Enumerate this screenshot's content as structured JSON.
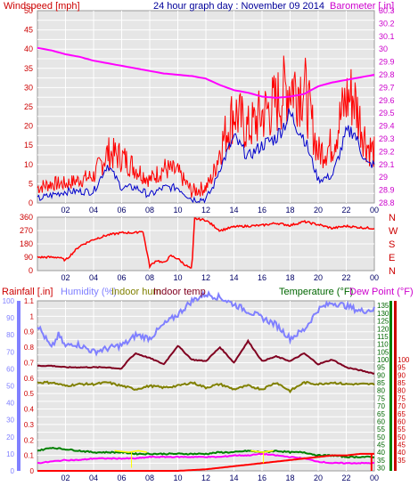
{
  "colors": {
    "bg": "#ffffff",
    "plot_bg": "#e6e6e6",
    "grid": "#ffffff",
    "axis_text": "#000066",
    "wind_avg": "#0000cc",
    "wind_gust": "#ff0000",
    "barometer": "#ff00ff",
    "direction": "#ff0000",
    "rain": "#ff0000",
    "humidity": "#8080ff",
    "indoor_hum": "#808000",
    "indoor_temp": "#800020",
    "temperature": "#008000",
    "dewpoint": "#ff00ff",
    "yellow": "#ffff00",
    "labels_red": "#cc0000",
    "labels_magenta": "#cc00cc",
    "labels_blue": "#000099",
    "labels_green": "#006600"
  },
  "chart_data": [
    {
      "type": "line",
      "title": "24 hour graph day : November 09 2014",
      "x_ticks": [
        "02",
        "04",
        "06",
        "08",
        "10",
        "12",
        "14",
        "16",
        "18",
        "20",
        "22",
        "00"
      ],
      "y_left_label": "Windspeed [mph]",
      "y_left_ticks": [
        "0",
        "5",
        "10",
        "15",
        "20",
        "25",
        "30",
        "35",
        "40",
        "45",
        "50"
      ],
      "ylim_left": [
        0,
        50
      ],
      "y_right_label": "Barometer [.in]",
      "y_right_ticks": [
        "28.8",
        "28.9",
        "29",
        "29.1",
        "29.2",
        "29.3",
        "29.4",
        "29.5",
        "29.6",
        "29.7",
        "29.8",
        "29.9",
        "30",
        "30.1",
        "30.2",
        "30.3"
      ],
      "ylim_right": [
        28.8,
        30.3
      ],
      "xlim_hours": [
        0,
        24
      ],
      "series": [
        {
          "key": "gust",
          "hours": [
            0,
            1,
            2,
            3,
            4,
            5,
            6,
            7,
            8,
            9,
            10,
            11,
            12,
            12.5,
            13,
            14,
            15,
            16,
            17,
            18,
            19,
            20,
            21,
            22,
            22.5,
            23,
            23.5,
            24
          ],
          "values": [
            4,
            5,
            5,
            6,
            7,
            13,
            12,
            9,
            6,
            9,
            8,
            3,
            4,
            7,
            14,
            24,
            19,
            23,
            26,
            31,
            30,
            13,
            15,
            27,
            28,
            21,
            15,
            13
          ]
        },
        {
          "key": "average",
          "hours": [
            0,
            1,
            2,
            3,
            4,
            5,
            6,
            7,
            8,
            9,
            10,
            11,
            12,
            12.5,
            13,
            14,
            15,
            16,
            17,
            18,
            19,
            20,
            21,
            22,
            22.5,
            23,
            23.5,
            24
          ],
          "values": [
            1,
            2,
            3,
            3,
            3,
            10,
            4,
            4,
            2,
            4,
            4,
            1,
            1,
            4,
            9,
            17,
            12,
            15,
            17,
            23,
            17,
            6,
            7,
            18,
            19,
            14,
            10,
            10
          ]
        },
        {
          "key": "barometer",
          "hours": [
            0,
            1,
            2,
            3,
            4,
            5,
            6,
            7,
            8,
            9,
            10,
            11,
            12,
            13,
            14,
            15,
            16,
            17,
            18,
            19,
            20,
            21,
            22,
            23,
            24
          ],
          "values": [
            30.01,
            29.99,
            29.96,
            29.94,
            29.91,
            29.89,
            29.87,
            29.85,
            29.83,
            29.81,
            29.8,
            29.79,
            29.77,
            29.72,
            29.68,
            29.66,
            29.63,
            29.62,
            29.63,
            29.65,
            29.71,
            29.74,
            29.76,
            29.78,
            29.8
          ]
        }
      ]
    },
    {
      "type": "line",
      "x_ticks": [
        "02",
        "04",
        "06",
        "08",
        "10",
        "12",
        "14",
        "16",
        "18",
        "20",
        "22",
        "00"
      ],
      "y_left_ticks": [
        "0",
        "90",
        "180",
        "270",
        "360"
      ],
      "ylim": [
        0,
        360
      ],
      "y_right_ticks": [
        "N",
        "W",
        "S",
        "E",
        "N"
      ],
      "series": [
        {
          "key": "direction",
          "hours": [
            0,
            1.5,
            2,
            3,
            4,
            5,
            6,
            7,
            7.5,
            8,
            8.5,
            9,
            9.5,
            10,
            10.5,
            11,
            11.2,
            12,
            13,
            14,
            15,
            16,
            17,
            18,
            19,
            20,
            21,
            22,
            23,
            24
          ],
          "values": [
            90,
            90,
            70,
            165,
            210,
            240,
            255,
            255,
            270,
            30,
            70,
            50,
            100,
            80,
            40,
            10,
            350,
            340,
            270,
            295,
            300,
            305,
            320,
            305,
            330,
            310,
            285,
            300,
            290,
            285
          ]
        }
      ]
    },
    {
      "type": "line",
      "x_ticks": [
        "02",
        "04",
        "06",
        "08",
        "10",
        "12",
        "14",
        "16",
        "18",
        "20",
        "22",
        "00"
      ],
      "legend": [
        "Rainfall [.in]",
        "Humidity (%)",
        "Indoor hum",
        "Indoor temp",
        "Temperature (°F)",
        "Dew Point (°F)"
      ],
      "rain_ticks": [
        "0",
        "0.1",
        "0.2",
        "0.3",
        "0.4",
        "0.5",
        "0.6",
        "0.7",
        "0.8",
        "0.9",
        "1",
        "1.1"
      ],
      "rain_lim": [
        0,
        1.1
      ],
      "humidity_ticks": [
        "0",
        "10",
        "20",
        "30",
        "40",
        "50",
        "60",
        "70",
        "80",
        "90",
        "100"
      ],
      "humidity_lim": [
        0,
        100
      ],
      "temp_ticks": [
        "30",
        "35",
        "40",
        "45",
        "50",
        "55",
        "60",
        "65",
        "70",
        "75",
        "80",
        "85",
        "90",
        "95",
        "100",
        "105",
        "110",
        "115",
        "120",
        "125",
        "130",
        "135"
      ],
      "temp_lim": [
        28,
        138
      ],
      "dew_ticks": [
        "35",
        "40",
        "45",
        "50",
        "55",
        "60",
        "65",
        "70",
        "75",
        "80",
        "85",
        "90",
        "95",
        "100"
      ],
      "series": [
        {
          "key": "humidity",
          "hours": [
            0,
            0.5,
            1,
            1.5,
            2,
            2.5,
            3,
            4,
            5,
            6,
            6.5,
            7,
            8,
            9,
            10,
            11,
            12,
            13,
            14,
            15,
            16,
            17,
            18,
            19,
            20,
            21,
            22,
            23,
            24
          ],
          "values": [
            86,
            79,
            72,
            80,
            73,
            75,
            74,
            70,
            72,
            74,
            76,
            80,
            78,
            86,
            92,
            100,
            104,
            102,
            98,
            94,
            90,
            86,
            78,
            83,
            95,
            99,
            97,
            94,
            95
          ]
        },
        {
          "key": "indoor_temp",
          "hours": [
            0,
            1,
            2,
            3,
            4,
            5,
            6,
            6.5,
            7,
            8,
            9,
            10,
            11,
            12,
            13,
            14,
            15,
            16,
            17,
            18,
            19,
            20,
            21,
            22,
            23,
            24
          ],
          "values": [
            96,
            96,
            95,
            95,
            95,
            95,
            94,
            100,
            104,
            101,
            97,
            109,
            100,
            99,
            108,
            98,
            112,
            99,
            102,
            99,
            104,
            97,
            100,
            95,
            93,
            91
          ]
        },
        {
          "key": "indoor_hum",
          "hours": [
            0,
            1,
            2,
            3,
            4,
            5,
            6,
            7,
            8,
            9,
            10,
            11,
            12,
            13,
            14,
            15,
            16,
            17,
            18,
            19,
            20,
            21,
            22,
            23,
            24
          ],
          "values": [
            52,
            52,
            50,
            51,
            51,
            52,
            50,
            48,
            50,
            49,
            50,
            52,
            49,
            51,
            48,
            50,
            48,
            52,
            47,
            52,
            51,
            52,
            51,
            51,
            51
          ]
        },
        {
          "key": "temperature",
          "hours": [
            0,
            1,
            2,
            3,
            4,
            5,
            6,
            7,
            8,
            9,
            10,
            11,
            12,
            13,
            14,
            15,
            16,
            17,
            18,
            19,
            20,
            21,
            22,
            23,
            24
          ],
          "values": [
            41,
            43,
            42,
            41,
            40,
            40,
            40,
            39,
            39,
            39,
            39,
            39,
            39,
            40,
            40,
            41,
            40,
            41,
            40,
            40,
            38,
            38,
            37,
            37,
            37
          ]
        },
        {
          "key": "dewpoint",
          "hours": [
            0,
            1,
            2,
            3,
            4,
            5,
            6,
            7,
            8,
            9,
            10,
            11,
            12,
            13,
            14,
            15,
            16,
            17,
            18,
            19,
            20,
            21,
            22,
            23,
            24
          ],
          "values": [
            33,
            34,
            35,
            35,
            36,
            36,
            36,
            36,
            37,
            37,
            37,
            37,
            37,
            37,
            38,
            38,
            39,
            38,
            37,
            36,
            34,
            33,
            33,
            33,
            33
          ]
        },
        {
          "key": "rainfall",
          "hours": [
            0,
            10,
            11,
            12,
            13,
            14,
            15,
            16,
            17,
            18,
            19,
            20,
            21,
            22,
            23,
            24
          ],
          "values": [
            0,
            0,
            0.005,
            0.01,
            0.02,
            0.03,
            0.04,
            0.05,
            0.06,
            0.07,
            0.08,
            0.09,
            0.1,
            0.1,
            0.11,
            0.11
          ]
        }
      ]
    }
  ]
}
